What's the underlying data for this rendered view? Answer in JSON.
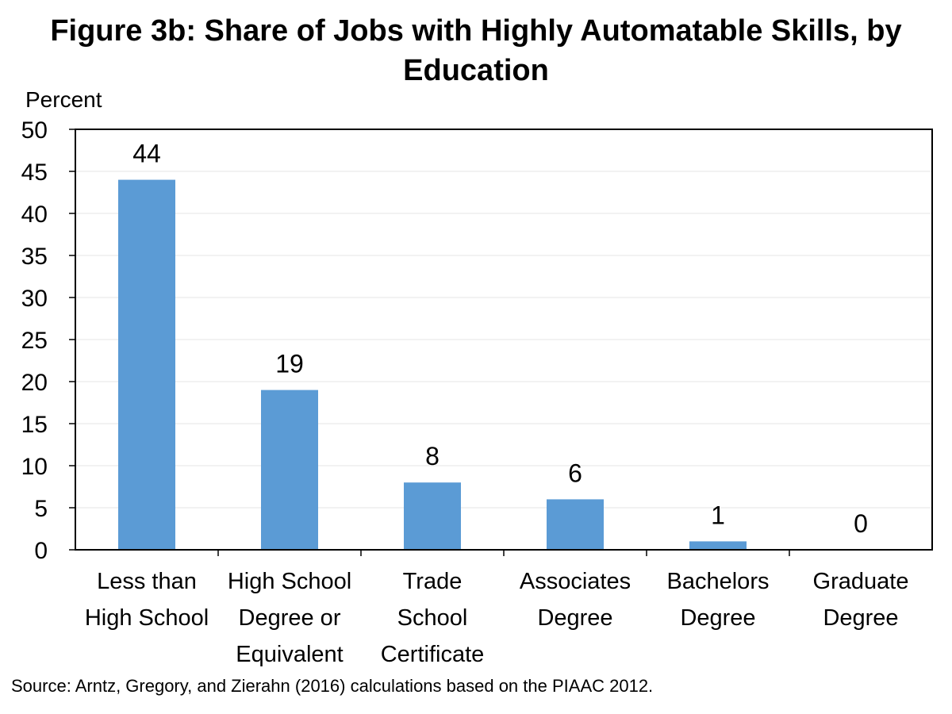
{
  "chart_data": {
    "type": "bar",
    "title_lines": [
      "Figure 3b: Share of Jobs with Highly Automatable Skills, by",
      "Education"
    ],
    "ylabel": "Percent",
    "ylim": [
      0,
      50
    ],
    "yticks": [
      0,
      5,
      10,
      15,
      20,
      25,
      30,
      35,
      40,
      45,
      50
    ],
    "categories": [
      [
        "Less than",
        "High School"
      ],
      [
        "High School",
        "Degree or",
        "Equivalent"
      ],
      [
        "Trade",
        "School",
        "Certificate"
      ],
      [
        "Associates",
        "Degree"
      ],
      [
        "Bachelors",
        "Degree"
      ],
      [
        "Graduate",
        "Degree"
      ]
    ],
    "values": [
      44,
      19,
      8,
      6,
      1,
      0
    ],
    "data_labels": [
      "44",
      "19",
      "8",
      "6",
      "1",
      "0"
    ],
    "bar_color": "#5b9bd5",
    "grid": true,
    "source": "Source: Arntz, Gregory, and Zierahn (2016) calculations based on the PIAAC 2012."
  }
}
